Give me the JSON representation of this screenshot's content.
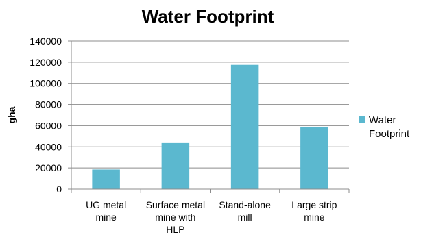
{
  "chart_data": {
    "type": "bar",
    "title": "Water Footprint",
    "xlabel": "",
    "ylabel": "gha",
    "categories": [
      [
        "UG metal",
        "mine"
      ],
      [
        "Surface metal",
        "mine with",
        "HLP"
      ],
      [
        "Stand-alone",
        "mill"
      ],
      [
        "Large strip",
        "mine"
      ]
    ],
    "series": [
      {
        "name": [
          "Water",
          "Footprint"
        ],
        "values": [
          18500,
          43500,
          117500,
          59000
        ],
        "color": "#5bb8cf"
      }
    ],
    "ylim": [
      0,
      140000
    ],
    "yticks": [
      "0",
      "20000",
      "40000",
      "60000",
      "80000",
      "100000",
      "120000",
      "140000"
    ],
    "grid": true,
    "legend": "right"
  }
}
